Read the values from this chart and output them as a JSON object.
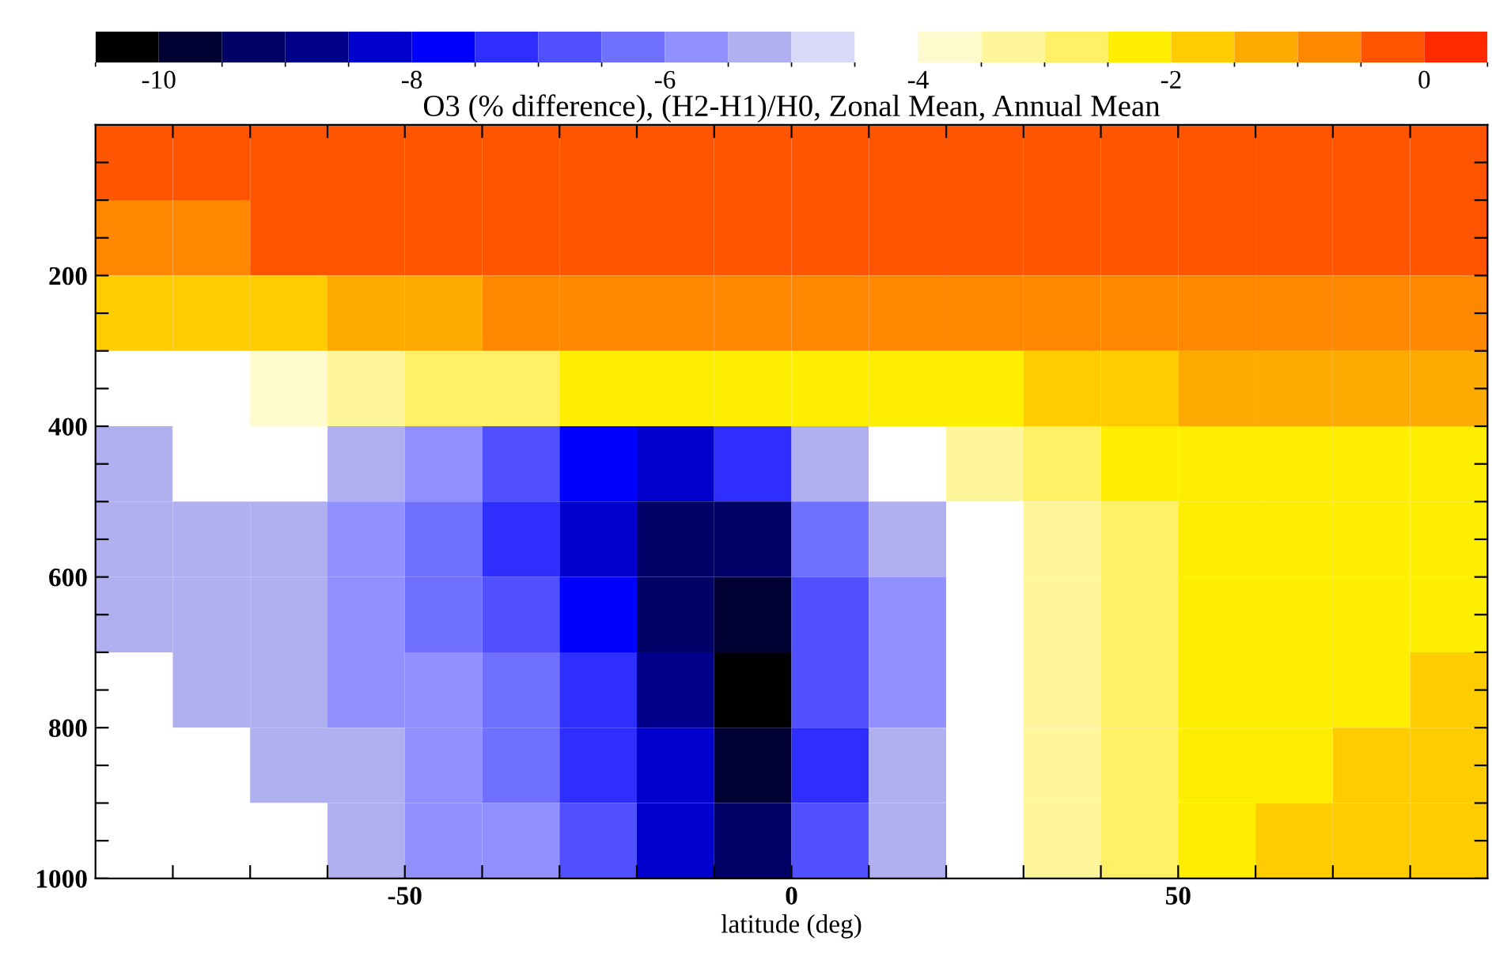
{
  "chart_data": {
    "type": "heatmap",
    "title": "O3 (% difference), (H2-H1)/H0, Zonal Mean, Annual Mean",
    "xlabel": "latitude (deg)",
    "x": [
      -85,
      -75,
      -65,
      -55,
      -45,
      -35,
      -25,
      -15,
      -5,
      5,
      15,
      25,
      35,
      45,
      55,
      65,
      75,
      85
    ],
    "y": [
      50,
      150,
      250,
      350,
      450,
      550,
      650,
      750,
      850,
      950
    ],
    "cells": [
      [
        -0.3,
        -0.3,
        -0.3,
        -0.3,
        -0.3,
        -0.3,
        -0.3,
        -0.3,
        -0.3,
        -0.3,
        -0.3,
        -0.3,
        -0.3,
        -0.3,
        -0.3,
        -0.3,
        -0.3,
        -0.3
      ],
      [
        -0.7,
        -0.7,
        -0.3,
        -0.3,
        -0.3,
        -0.3,
        -0.3,
        -0.3,
        -0.3,
        -0.3,
        -0.3,
        -0.3,
        -0.3,
        -0.3,
        -0.3,
        -0.3,
        -0.3,
        -0.3
      ],
      [
        -1.8,
        -1.8,
        -1.6,
        -1.4,
        -1.2,
        -1.0,
        -0.8,
        -0.8,
        -0.9,
        -0.9,
        -1.0,
        -1.0,
        -1.0,
        -0.9,
        -0.8,
        -0.8,
        -0.7,
        -0.7
      ],
      [
        -4.2,
        -4.2,
        -3.8,
        -3.4,
        -3.0,
        -2.8,
        -2.5,
        -2.4,
        -2.3,
        -2.4,
        -2.5,
        -2.2,
        -1.8,
        -1.7,
        -1.5,
        -1.4,
        -1.3,
        -1.3
      ],
      [
        -5.2,
        -4.2,
        -4.2,
        -5.2,
        -5.8,
        -6.8,
        -7.8,
        -8.3,
        -7.5,
        -5.2,
        -4.2,
        -3.5,
        -3.0,
        -2.3,
        -2.2,
        -2.2,
        -2.2,
        -2.2
      ],
      [
        -5.2,
        -5.2,
        -5.2,
        -5.7,
        -6.3,
        -7.2,
        -8.2,
        -9.2,
        -9.2,
        -6.5,
        -5.2,
        -4.2,
        -3.2,
        -2.7,
        -2.3,
        -2.2,
        -2.2,
        -2.2
      ],
      [
        -5.2,
        -5.2,
        -5.2,
        -5.7,
        -6.2,
        -6.8,
        -7.8,
        -9.2,
        -9.8,
        -6.8,
        -5.7,
        -4.2,
        -3.3,
        -2.7,
        -2.3,
        -2.2,
        -2.2,
        -2.2
      ],
      [
        -4.2,
        -5.2,
        -5.2,
        -5.7,
        -6.0,
        -6.5,
        -7.5,
        -8.8,
        -10.2,
        -7.0,
        -5.7,
        -4.2,
        -3.2,
        -2.6,
        -2.2,
        -2.2,
        -2.2,
        -1.8
      ],
      [
        -4.2,
        -4.2,
        -5.2,
        -5.3,
        -5.7,
        -6.2,
        -7.2,
        -8.5,
        -9.8,
        -7.2,
        -5.3,
        -4.2,
        -3.2,
        -2.6,
        -2.2,
        -2.2,
        -1.8,
        -1.8
      ],
      [
        -4.2,
        -4.2,
        -4.2,
        -5.2,
        -5.6,
        -6.0,
        -6.8,
        -8.2,
        -9.5,
        -7.0,
        -5.2,
        -4.2,
        -3.2,
        -2.6,
        -2.2,
        -1.8,
        -1.8,
        -1.8
      ]
    ],
    "clim": [
      -10.5,
      0.5
    ],
    "cticks": [
      -10,
      -8,
      -6,
      -4,
      -2,
      0
    ],
    "colors": [
      "#000000",
      "#000033",
      "#000066",
      "#00008b",
      "#0000cc",
      "#0000ff",
      "#2e2eff",
      "#5050ff",
      "#7070ff",
      "#9090ff",
      "#b0b0f0",
      "#d8d8f8",
      "#ffffff",
      "#fffacd",
      "#fff59a",
      "#fff066",
      "#ffee00",
      "#ffcc00",
      "#ffaa00",
      "#ff8800",
      "#ff5500",
      "#ff2a00"
    ],
    "xlim": [
      -90,
      90
    ],
    "xticks": [
      {
        "value": -80,
        "label": null
      },
      {
        "value": -70,
        "label": null
      },
      {
        "value": -60,
        "label": null
      },
      -50,
      {
        "value": -40,
        "label": null
      },
      {
        "value": -30,
        "label": null
      },
      {
        "value": -20,
        "label": null
      },
      {
        "value": -10,
        "label": null
      },
      0,
      {
        "value": 10,
        "label": null
      },
      {
        "value": 20,
        "label": null
      },
      {
        "value": 30,
        "label": null
      },
      {
        "value": 40,
        "label": null
      },
      50,
      {
        "value": 60,
        "label": null
      },
      {
        "value": 70,
        "label": null
      },
      {
        "value": 80,
        "label": null
      }
    ],
    "ylim": [
      1000,
      0
    ],
    "yticks": [
      {
        "value": 50,
        "label": null
      },
      {
        "value": 100,
        "label": null
      },
      {
        "value": 150,
        "label": null
      },
      200,
      {
        "value": 250,
        "label": null
      },
      {
        "value": 300,
        "label": null
      },
      {
        "value": 350,
        "label": null
      },
      400,
      {
        "value": 450,
        "label": null
      },
      {
        "value": 500,
        "label": null
      },
      {
        "value": 550,
        "label": null
      },
      600,
      {
        "value": 650,
        "label": null
      },
      {
        "value": 700,
        "label": null
      },
      {
        "value": 750,
        "label": null
      },
      800,
      {
        "value": 850,
        "label": null
      },
      {
        "value": 900,
        "label": null
      },
      {
        "value": 950,
        "label": null
      },
      1000
    ]
  }
}
